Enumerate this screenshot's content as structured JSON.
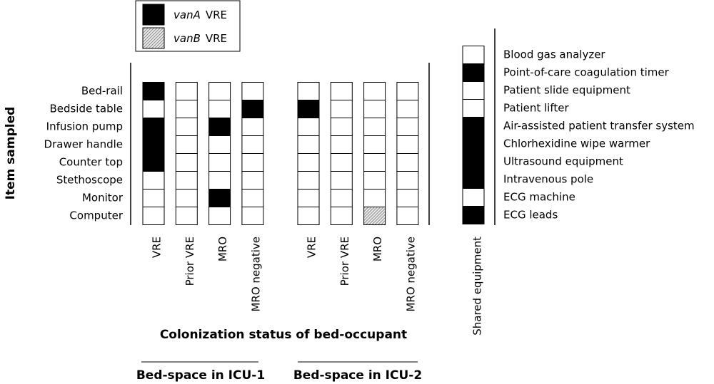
{
  "legend": [
    {
      "gene": "vanA",
      "label": "VRE",
      "color": "#000000",
      "style": "solid"
    },
    {
      "gene": "vanB",
      "label": "VRE",
      "color": "#000000",
      "style": "hatched"
    }
  ],
  "y_axis_title": "Item sampled",
  "x_axis_title": "Colonization status of bed-occupant",
  "items": [
    "Bed-rail",
    "Bedside table",
    "Infusion pump",
    "Drawer handle",
    "Counter top",
    "Stethoscope",
    "Monitor",
    "Computer"
  ],
  "groups": [
    {
      "label": "Bed-space in ICU-1",
      "columns": [
        {
          "label": "VRE",
          "cells": [
            "vanA",
            null,
            "vanA",
            "vanA",
            "vanA",
            null,
            null,
            null
          ]
        },
        {
          "label": "Prior VRE",
          "cells": [
            null,
            null,
            null,
            null,
            null,
            null,
            null,
            null
          ]
        },
        {
          "label": "MRO",
          "cells": [
            null,
            null,
            "vanA",
            null,
            null,
            null,
            "vanA",
            null
          ]
        },
        {
          "label": "MRO negative",
          "cells": [
            null,
            "vanA",
            null,
            null,
            null,
            null,
            null,
            null
          ]
        }
      ]
    },
    {
      "label": "Bed-space in ICU-2",
      "columns": [
        {
          "label": "VRE",
          "cells": [
            null,
            "vanA",
            null,
            null,
            null,
            null,
            null,
            null
          ]
        },
        {
          "label": "Prior VRE",
          "cells": [
            null,
            null,
            null,
            null,
            null,
            null,
            null,
            null
          ]
        },
        {
          "label": "MRO",
          "cells": [
            null,
            null,
            null,
            null,
            null,
            null,
            null,
            "vanB"
          ]
        },
        {
          "label": "MRO negative",
          "cells": [
            null,
            null,
            null,
            null,
            null,
            null,
            null,
            null
          ]
        }
      ]
    }
  ],
  "shared": {
    "label": "Shared equipment",
    "items": [
      {
        "name": "Blood gas analyzer",
        "cell": null
      },
      {
        "name": "Point-of-care coagulation timer",
        "cell": "vanA"
      },
      {
        "name": "Patient slide equipment",
        "cell": null
      },
      {
        "name": "Patient lifter",
        "cell": null
      },
      {
        "name": "Air-assisted patient transfer system",
        "cell": "vanA"
      },
      {
        "name": "Chlorhexidine wipe warmer",
        "cell": "vanA"
      },
      {
        "name": "Ultrasound equipment",
        "cell": "vanA"
      },
      {
        "name": "Intravenous pole",
        "cell": "vanA"
      },
      {
        "name": "ECG machine",
        "cell": null
      },
      {
        "name": "ECG leads",
        "cell": "vanA"
      }
    ]
  }
}
